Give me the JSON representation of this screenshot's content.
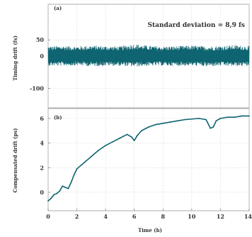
{
  "chart_data": [
    {
      "type": "line",
      "panel_label": "(a)",
      "ylabel": "Timing drift (fs)",
      "annotation": "Standard deviation = 8,9 fs",
      "xlim": [
        0,
        14
      ],
      "ylim": [
        -160,
        160
      ],
      "yticks": [
        -100,
        0,
        50
      ],
      "ytick_labels": [
        "-100",
        "0",
        "50"
      ],
      "grid": true,
      "color": "#0e6470",
      "series": [
        {
          "style": "noise-band",
          "x": [
            0,
            1,
            2,
            3,
            4,
            5,
            6,
            7,
            8,
            9,
            10,
            11,
            12,
            13,
            14
          ],
          "center": [
            0,
            0,
            0,
            0,
            0,
            0,
            0,
            0,
            0,
            0,
            0,
            0,
            0,
            0,
            0
          ],
          "upper": [
            30,
            32,
            30,
            33,
            31,
            30,
            38,
            32,
            30,
            31,
            33,
            30,
            32,
            34,
            31
          ],
          "lower": [
            -30,
            -31,
            -29,
            -32,
            -30,
            -31,
            -33,
            -31,
            -30,
            -31,
            -30,
            -33,
            -31,
            -32,
            -31
          ]
        }
      ]
    },
    {
      "type": "line",
      "panel_label": "(b)",
      "ylabel": "Compensated drift (ps)",
      "xlabel": "Time (h)",
      "xlim": [
        0,
        14
      ],
      "ylim": [
        -1.5,
        6.8
      ],
      "xticks": [
        0,
        2,
        4,
        6,
        8,
        10,
        12,
        14
      ],
      "xtick_labels": [
        "0",
        "2",
        "4",
        "6",
        "8",
        "10",
        "12",
        "14"
      ],
      "yticks": [
        0,
        2,
        4,
        6
      ],
      "ytick_labels": [
        "0",
        "2",
        "4",
        "6"
      ],
      "grid": true,
      "color": "#0e6470",
      "series": [
        {
          "x": [
            0,
            0.2,
            0.4,
            0.6,
            0.8,
            1.0,
            1.2,
            1.4,
            1.6,
            1.8,
            2.0,
            2.3,
            2.6,
            3.0,
            3.5,
            4.0,
            4.5,
            5.0,
            5.5,
            5.8,
            6.0,
            6.2,
            6.5,
            7.0,
            7.5,
            8.0,
            8.5,
            9.0,
            9.5,
            10.0,
            10.5,
            11.0,
            11.3,
            11.5,
            11.7,
            12.0,
            12.5,
            13.0,
            13.5,
            14.0
          ],
          "y": [
            -0.7,
            -0.5,
            -0.2,
            -0.1,
            0.1,
            0.5,
            0.4,
            0.3,
            0.8,
            1.4,
            1.9,
            2.2,
            2.5,
            2.9,
            3.4,
            3.8,
            4.1,
            4.4,
            4.7,
            4.5,
            4.2,
            4.6,
            5.0,
            5.3,
            5.5,
            5.6,
            5.7,
            5.8,
            5.9,
            5.95,
            6.0,
            5.9,
            5.2,
            5.3,
            5.8,
            6.0,
            6.1,
            6.1,
            6.2,
            6.2
          ]
        }
      ]
    }
  ]
}
